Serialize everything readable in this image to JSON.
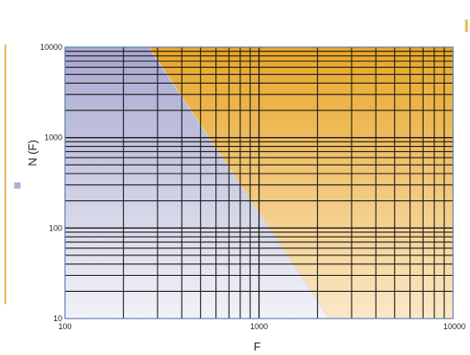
{
  "chart_data": {
    "type": "area",
    "title": "",
    "xlabel": "F",
    "ylabel": "N (F)",
    "x_scale": "log",
    "y_scale": "log",
    "xlim": [
      100,
      10000
    ],
    "ylim": [
      10,
      10000
    ],
    "x_ticks": [
      "100",
      "1000",
      "10000"
    ],
    "y_ticks": [
      "10",
      "100",
      "1000",
      "10000"
    ],
    "grid": true,
    "legend": "left",
    "boundary": {
      "x": [
        270,
        2300
      ],
      "y": [
        10000,
        10
      ]
    },
    "regions": [
      {
        "position": "below boundary",
        "color": "#b8b8d8"
      },
      {
        "position": "above boundary",
        "color": "#e8a628"
      }
    ]
  },
  "colors": {
    "lower_region_top": "#a8a8d0",
    "lower_region_bottom": "#f2f2f8",
    "upper_region_top": "#e8a628",
    "upper_region_bottom": "#fbe8c8",
    "grid": "#1a1a1a",
    "frame": "#6080b0",
    "accent_line": "#e8b858",
    "legend_swatch": "#b0b0d4"
  }
}
